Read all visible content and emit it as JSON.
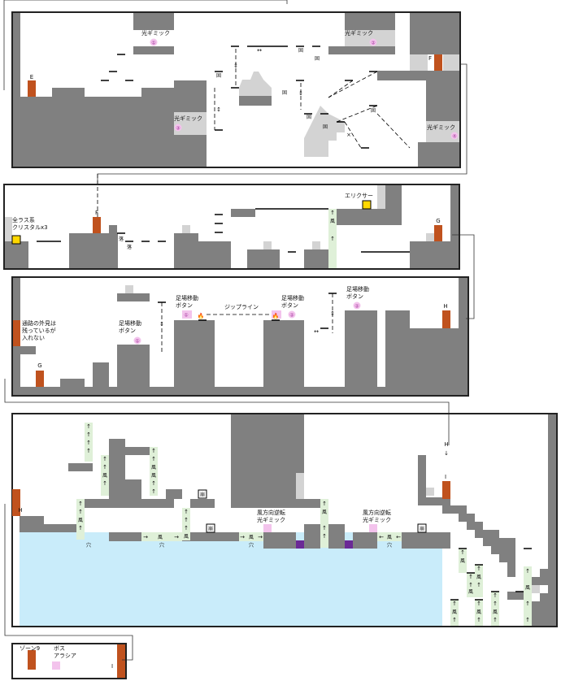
{
  "map": {
    "colors": {
      "wall": "#808080",
      "light_block": "#d3d3d3",
      "door": "#c0521e",
      "wind": "#dff0d8",
      "water": "#c9ecfa",
      "pink": "#f3c3ec",
      "purple": "#6a2a96",
      "item": "#ffd800",
      "frame": "#222222"
    },
    "doors": [
      "E",
      "F",
      "F",
      "G",
      "G",
      "H",
      "H",
      "I",
      "I"
    ],
    "arrows": {
      "vertical": "↕",
      "horizontal": "↔",
      "up": "↑",
      "down": "↓",
      "right": "→",
      "left": "←",
      "cross": "×"
    },
    "glyphs": {
      "fall": "落",
      "solid": "固",
      "wind": "風",
      "hole": "穴",
      "break": "崩"
    },
    "labels": {
      "light_gimmick": "光ギミック",
      "elixir": "エリクサー",
      "all_last_crystal": "全ラス系\nクリスタルx3",
      "passage_note": "通路の外見は\n残っているが\n入れない",
      "foothold_button": "足場移動\nボタン",
      "zipline": "ジップライン",
      "wind_reverse": "風方向逆転\n光ギミック",
      "zone9": "ゾーン9",
      "boss": "ボス\nアラシア"
    },
    "numbers": [
      "①",
      "②",
      "③",
      "④"
    ]
  }
}
